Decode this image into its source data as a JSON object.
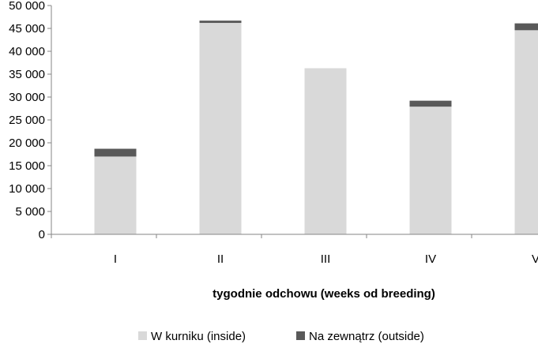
{
  "chart_data": {
    "type": "bar",
    "stacked": true,
    "title": "",
    "xlabel": "tygodnie odchowu (weeks od breeding)",
    "ylabel": "",
    "categories": [
      "I",
      "II",
      "III",
      "IV",
      "V"
    ],
    "ylim": [
      0,
      50000
    ],
    "yticks": [
      0,
      5000,
      10000,
      15000,
      20000,
      25000,
      30000,
      35000,
      40000,
      45000,
      50000
    ],
    "ytick_labels": [
      "0",
      "5 000",
      "10 000",
      "15 000",
      "20 000",
      "25 000",
      "30 000",
      "35 000",
      "40 000",
      "45 000",
      "50 000"
    ],
    "grid": false,
    "legend_position": "bottom",
    "series": [
      {
        "name": "W kurniku (inside)",
        "color": "#d9d9d9",
        "values": [
          17000,
          46200,
          36300,
          27900,
          44600
        ]
      },
      {
        "name": "Na zewnątrz (outside)",
        "color": "#595959",
        "values": [
          1700,
          500,
          0,
          1300,
          1500
        ]
      }
    ]
  }
}
